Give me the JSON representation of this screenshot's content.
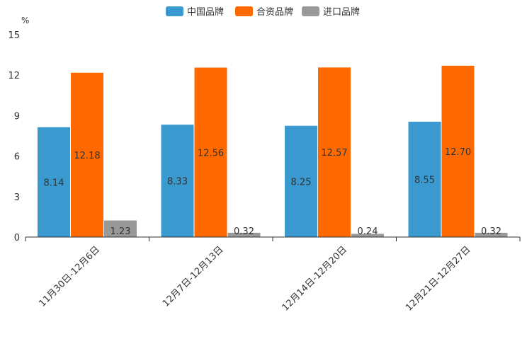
{
  "chart_data": {
    "type": "bar",
    "title": "",
    "xlabel": "",
    "ylabel": "%",
    "ylim": [
      0,
      15
    ],
    "yticks": [
      0,
      3,
      6,
      9,
      12,
      15
    ],
    "grid": false,
    "legend_position": "top-center",
    "categories": [
      "11月30日-12月6日",
      "12月7日-12月13日",
      "12月14日-12月20日",
      "12月21日-12月27日"
    ],
    "series": [
      {
        "name": "中国品牌",
        "color": "#3a9ad0",
        "values": [
          8.14,
          8.33,
          8.25,
          8.55
        ],
        "labels": [
          "8.14",
          "8.33",
          "8.25",
          "8.55"
        ]
      },
      {
        "name": "合资品牌",
        "color": "#ff6a00",
        "values": [
          12.18,
          12.56,
          12.57,
          12.7
        ],
        "labels": [
          "12.18",
          "12.56",
          "12.57",
          "12.70"
        ]
      },
      {
        "name": "进口品牌",
        "color": "#999999",
        "values": [
          1.23,
          0.32,
          0.24,
          0.32
        ],
        "labels": [
          "1.23",
          "0.32",
          "0.24",
          "0.32"
        ]
      }
    ]
  }
}
